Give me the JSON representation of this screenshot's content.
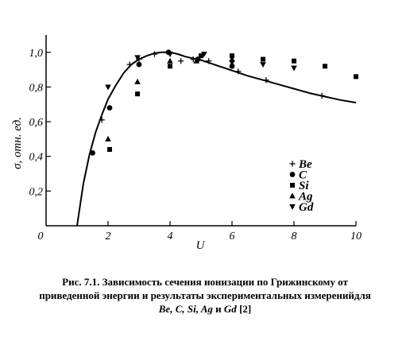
{
  "chart_data": {
    "type": "scatter",
    "xlabel": "U",
    "ylabel": "σ, отн. ед.",
    "xlim": [
      0,
      10
    ],
    "ylim": [
      0,
      1.1
    ],
    "x_ticks": [
      "0",
      "2",
      "4",
      "6",
      "8",
      "10"
    ],
    "y_ticks": [
      "0,2",
      "0,4",
      "0,6",
      "0,8",
      "1,0"
    ],
    "grid": false,
    "legend_position": "right",
    "curve": {
      "x": [
        1.0,
        1.2,
        1.4,
        1.6,
        1.8,
        2.0,
        2.25,
        2.5,
        2.75,
        3.0,
        3.25,
        3.5,
        3.75,
        4.0,
        4.25,
        4.5,
        5.0,
        5.5,
        6.0,
        6.5,
        7.0,
        7.5,
        8.0,
        8.5,
        9.0,
        9.5,
        10.0
      ],
      "y": [
        0.0,
        0.24,
        0.41,
        0.54,
        0.64,
        0.73,
        0.81,
        0.88,
        0.93,
        0.96,
        0.98,
        0.995,
        1.0,
        1.0,
        0.99,
        0.975,
        0.955,
        0.925,
        0.895,
        0.865,
        0.84,
        0.815,
        0.79,
        0.765,
        0.745,
        0.725,
        0.71
      ]
    },
    "series": [
      {
        "name": "Be",
        "marker": "plus",
        "x": [
          1.8,
          2.7,
          3.0,
          3.5,
          4.35,
          4.75,
          5.25,
          6.2,
          7.1,
          8.9
        ],
        "y": [
          0.61,
          0.93,
          0.96,
          0.99,
          0.95,
          0.96,
          0.95,
          0.89,
          0.84,
          0.75
        ]
      },
      {
        "name": "C",
        "marker": "circle",
        "x": [
          1.5,
          2.05,
          3.0,
          3.95,
          4.9,
          6.0
        ],
        "y": [
          0.42,
          0.68,
          0.93,
          1.0,
          0.96,
          0.92
        ]
      },
      {
        "name": "Si",
        "marker": "square",
        "x": [
          2.05,
          2.95,
          4.0,
          5.0,
          6.0,
          7.0,
          8.0,
          9.0,
          10.0
        ],
        "y": [
          0.44,
          0.76,
          0.92,
          0.98,
          0.98,
          0.96,
          0.95,
          0.92,
          0.86
        ]
      },
      {
        "name": "Ag",
        "marker": "triangle-up",
        "x": [
          2.0,
          2.95,
          4.0,
          4.85,
          6.0
        ],
        "y": [
          0.5,
          0.83,
          0.95,
          0.95,
          0.96
        ]
      },
      {
        "name": "Gd",
        "marker": "triangle-down",
        "x": [
          2.0,
          2.95,
          4.0,
          5.1,
          6.0,
          7.0,
          8.0
        ],
        "y": [
          0.8,
          0.97,
          0.99,
          0.99,
          0.94,
          0.93,
          0.91
        ]
      }
    ]
  },
  "caption": {
    "line1": "Рис. 7.1. Зависимость сечения ионизации по Грижинскому от",
    "line2": "приведенной энергии и результаты экспериментальных измеренийдля",
    "line3_items": "Be, C, Si, Ag",
    "line3_and": " и ",
    "line3_last": "Gd",
    "line3_ref": " [2]"
  }
}
